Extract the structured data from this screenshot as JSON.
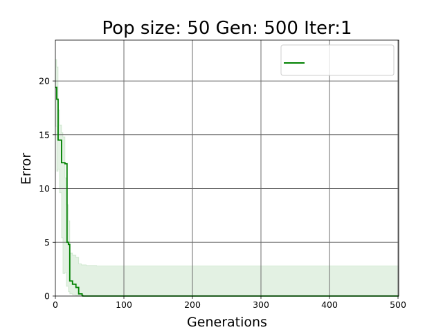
{
  "chart_data": {
    "type": "line",
    "title": "Pop size: 50  Gen: 500  Iter:1",
    "xlabel": "Generations",
    "ylabel": "Error",
    "xlim": [
      0,
      501
    ],
    "ylim": [
      0,
      23.8
    ],
    "x_ticks": [
      0,
      100,
      200,
      300,
      400,
      500
    ],
    "y_ticks": [
      0,
      5,
      10,
      15,
      20
    ],
    "grid": true,
    "legend": {
      "position": "top-right",
      "entries": [
        {
          "label": "",
          "color": "#008000"
        }
      ]
    },
    "series": [
      {
        "color": "#008000",
        "step": true,
        "x": [
          0,
          2,
          4,
          9,
          14,
          17,
          19,
          21,
          25,
          30,
          34,
          39,
          40,
          50,
          501
        ],
        "y": [
          19.4,
          18.3,
          14.5,
          12.4,
          12.3,
          5.0,
          4.8,
          1.4,
          1.1,
          0.8,
          0.2,
          0.05,
          0.0,
          0.0,
          0.0
        ]
      }
    ],
    "band": {
      "color": "#008000",
      "opacity": 0.11,
      "x": [
        0,
        2,
        4,
        6,
        9,
        11,
        14,
        16,
        19,
        21,
        25,
        30,
        34,
        38,
        45,
        60,
        100,
        200,
        300,
        400,
        501
      ],
      "upper": [
        22.0,
        21.3,
        17.3,
        15.9,
        15.2,
        14.8,
        11.0,
        8.5,
        7.0,
        4.0,
        3.8,
        3.6,
        3.0,
        2.9,
        2.85,
        2.8,
        2.8,
        2.8,
        2.8,
        2.8,
        2.8
      ],
      "lower": [
        16.3,
        15.8,
        11.6,
        11.8,
        9.6,
        5.4,
        2.1,
        2.2,
        0.9,
        0.4,
        0.2,
        0.1,
        0.0,
        0.0,
        0.0,
        0.0,
        0.0,
        0.0,
        0.0,
        0.0,
        0.0
      ]
    }
  }
}
